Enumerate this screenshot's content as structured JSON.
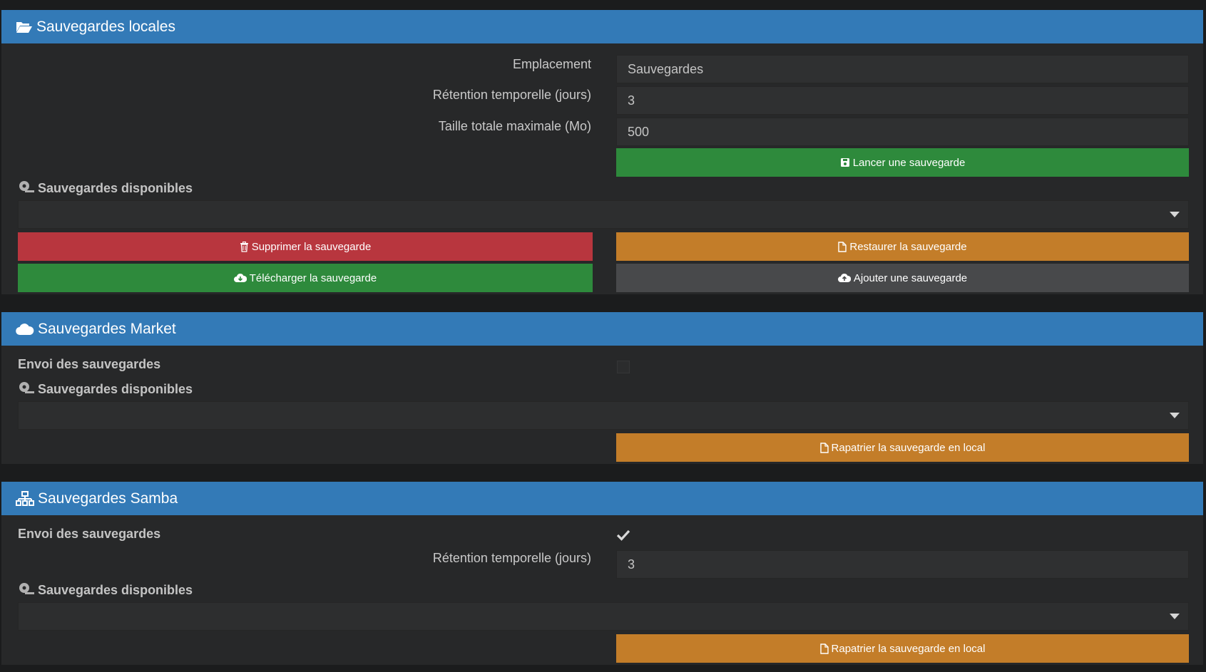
{
  "local": {
    "title": "Sauvegardes locales",
    "emplacement_label": "Emplacement",
    "emplacement_value": "Sauvegardes",
    "retention_label": "Rétention temporelle (jours)",
    "retention_value": "3",
    "max_size_label": "Taille totale maximale (Mo)",
    "max_size_value": "500",
    "launch_button": "Lancer une sauvegarde",
    "available_label": "Sauvegardes disponibles",
    "available_selected": "",
    "delete_button": "Supprimer la sauvegarde",
    "restore_button": "Restaurer la sauvegarde",
    "download_button": "Télécharger la sauvegarde",
    "add_button": "Ajouter une sauvegarde"
  },
  "market": {
    "title": "Sauvegardes Market",
    "send_label": "Envoi des sauvegardes",
    "send_checked": false,
    "available_label": "Sauvegardes disponibles",
    "available_selected": "",
    "repatriate_button": "Rapatrier la sauvegarde en local"
  },
  "samba": {
    "title": "Sauvegardes Samba",
    "send_label": "Envoi des sauvegardes",
    "send_checked": true,
    "retention_label": "Rétention temporelle (jours)",
    "retention_value": "3",
    "available_label": "Sauvegardes disponibles",
    "available_selected": "",
    "repatriate_button": "Rapatrier la sauvegarde en local"
  },
  "colors": {
    "header": "#337ab7",
    "success": "#2e8a3c",
    "danger": "#b8363e",
    "warning": "#c37d29",
    "default": "#48494b",
    "panel": "#272829",
    "page": "#1b1c1d"
  },
  "icons": {
    "local": "folder-open-icon",
    "market": "cloud-icon",
    "samba": "network-icon",
    "available": "hdd-icon",
    "launch": "save-icon",
    "delete": "trash-icon",
    "restore": "file-icon",
    "download": "cloud-download-icon",
    "add": "cloud-upload-icon",
    "repatriate": "file-icon"
  }
}
